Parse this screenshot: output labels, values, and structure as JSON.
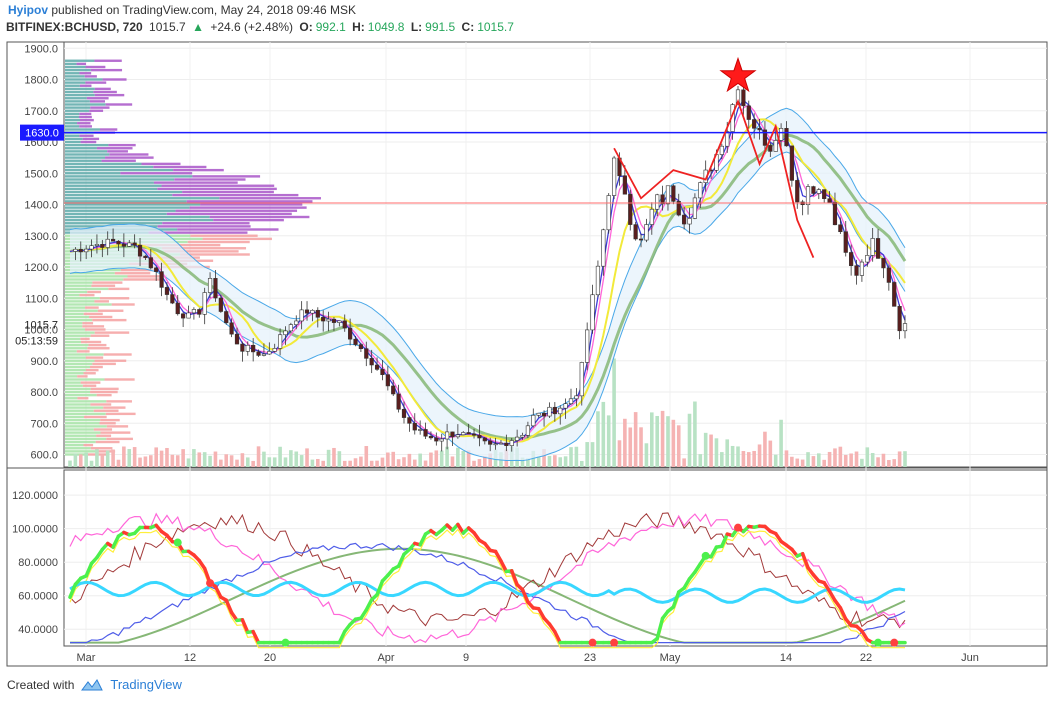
{
  "header": {
    "author": "Hyipov",
    "published_text": "published on TradingView.com, May 24, 2018 09:46 MSK",
    "symbol": "BITFINEX:BCHUSD, 720",
    "last": "1015.7",
    "change": "+24.6 (+2.48%)",
    "open_label": "O:",
    "open": "992.1",
    "high_label": "H:",
    "high": "1049.8",
    "low_label": "L:",
    "low": "991.5",
    "close_label": "C:",
    "close": "1015.7"
  },
  "footer": {
    "created_with": "Created with",
    "brand": "TradingView"
  },
  "colors": {
    "up": "#26a65b",
    "down": "#e83e3e",
    "blue_line": "#1a1aff",
    "red_line": "#ff6b6b"
  },
  "chart_data": [
    {
      "type": "candlestick",
      "ylim": [
        560,
        1920
      ],
      "yticks": [
        600,
        700,
        800,
        900,
        1000,
        1100,
        1200,
        1300,
        1400,
        1500,
        1600,
        1700,
        1800,
        1900
      ],
      "ytick_labels": [
        "600.0",
        "700.0",
        "800.0",
        "900.0",
        "1000.0",
        "1100.0",
        "1200.0",
        "1300.0",
        "1400.0",
        "1500.0",
        "1600.0",
        "1700.0",
        "1800.0",
        "1900.0"
      ],
      "price_label": "1015.7",
      "timer_label": "05:13:59",
      "hline_blue": {
        "value": 1630,
        "label": "1630.0"
      },
      "hline_red": {
        "value": 1405
      },
      "xtick_labels": [
        "Mar",
        "12",
        "20",
        "Apr",
        "9",
        "23",
        "May",
        "14",
        "22",
        "Jun"
      ],
      "close_path": [
        [
          0,
          1250
        ],
        [
          4,
          1270
        ],
        [
          8,
          1280
        ],
        [
          12,
          1265
        ],
        [
          14,
          1230
        ],
        [
          16,
          1180
        ],
        [
          18,
          1110
        ],
        [
          20,
          1060
        ],
        [
          22,
          1040
        ],
        [
          24,
          1060
        ],
        [
          25,
          1120
        ],
        [
          26,
          1150
        ],
        [
          27,
          1110
        ],
        [
          28,
          1060
        ],
        [
          30,
          980
        ],
        [
          32,
          940
        ],
        [
          34,
          930
        ],
        [
          36,
          920
        ],
        [
          38,
          950
        ],
        [
          40,
          1000
        ],
        [
          42,
          1040
        ],
        [
          44,
          1060
        ],
        [
          46,
          1040
        ],
        [
          48,
          1030
        ],
        [
          50,
          1020
        ],
        [
          52,
          980
        ],
        [
          54,
          940
        ],
        [
          56,
          900
        ],
        [
          58,
          850
        ],
        [
          60,
          780
        ],
        [
          62,
          720
        ],
        [
          64,
          680
        ],
        [
          66,
          660
        ],
        [
          68,
          650
        ],
        [
          70,
          665
        ],
        [
          72,
          670
        ],
        [
          74,
          655
        ],
        [
          76,
          640
        ],
        [
          78,
          625
        ],
        [
          80,
          635
        ],
        [
          82,
          650
        ],
        [
          84,
          670
        ],
        [
          86,
          720
        ],
        [
          88,
          730
        ],
        [
          90,
          745
        ],
        [
          92,
          760
        ],
        [
          94,
          800
        ],
        [
          95,
          880
        ],
        [
          96,
          1000
        ],
        [
          97,
          1100
        ],
        [
          98,
          1200
        ],
        [
          99,
          1320
        ],
        [
          100,
          1440
        ],
        [
          101,
          1540
        ],
        [
          102,
          1480
        ],
        [
          103,
          1440
        ],
        [
          104,
          1350
        ],
        [
          105,
          1300
        ],
        [
          106,
          1280
        ],
        [
          107,
          1330
        ],
        [
          108,
          1380
        ],
        [
          109,
          1420
        ],
        [
          110,
          1410
        ],
        [
          111,
          1450
        ],
        [
          112,
          1420
        ],
        [
          113,
          1380
        ],
        [
          114,
          1350
        ],
        [
          115,
          1370
        ],
        [
          116,
          1420
        ],
        [
          117,
          1460
        ],
        [
          118,
          1500
        ],
        [
          119,
          1520
        ],
        [
          120,
          1560
        ],
        [
          121,
          1600
        ],
        [
          122,
          1640
        ],
        [
          123,
          1720
        ],
        [
          124,
          1780
        ],
        [
          125,
          1720
        ],
        [
          126,
          1680
        ],
        [
          127,
          1650
        ],
        [
          128,
          1630
        ],
        [
          129,
          1600
        ],
        [
          130,
          1580
        ],
        [
          131,
          1620
        ],
        [
          132,
          1640
        ],
        [
          133,
          1600
        ],
        [
          134,
          1480
        ],
        [
          135,
          1420
        ],
        [
          136,
          1400
        ],
        [
          137,
          1460
        ],
        [
          138,
          1450
        ],
        [
          139,
          1440
        ],
        [
          140,
          1420
        ],
        [
          141,
          1400
        ],
        [
          142,
          1340
        ],
        [
          143,
          1300
        ],
        [
          144,
          1240
        ],
        [
          145,
          1200
        ],
        [
          146,
          1180
        ],
        [
          147,
          1220
        ],
        [
          148,
          1250
        ],
        [
          149,
          1280
        ],
        [
          150,
          1240
        ],
        [
          151,
          1210
        ],
        [
          152,
          1160
        ],
        [
          153,
          1080
        ],
        [
          154,
          1010
        ],
        [
          155,
          1016
        ]
      ],
      "overlay_polyline": [
        [
          101,
          1580
        ],
        [
          106,
          1420
        ],
        [
          112,
          1510
        ],
        [
          118,
          1480
        ],
        [
          124,
          1730
        ],
        [
          128,
          1530
        ],
        [
          131,
          1650
        ],
        [
          135,
          1350
        ],
        [
          138,
          1230
        ]
      ],
      "star_marker": {
        "x": 124,
        "y": 1810
      }
    },
    {
      "type": "line",
      "ylim": [
        30,
        135
      ],
      "yticks": [
        40,
        60,
        80,
        100,
        120
      ],
      "ytick_labels": [
        "40.0000",
        "60.0000",
        "80.0000",
        "100.0000",
        "120.0000"
      ],
      "x_range": [
        0,
        155
      ],
      "series_colors": [
        "#ff3b30",
        "#4f5de8",
        "#ff66d9",
        "#a23a3a",
        "#86b776",
        "#ffef3a"
      ]
    }
  ]
}
